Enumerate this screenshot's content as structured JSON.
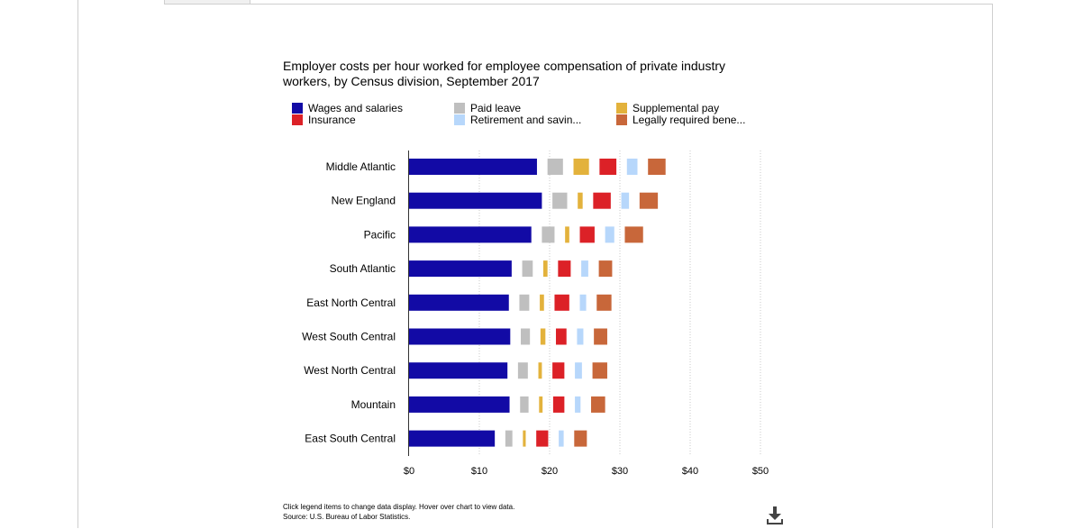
{
  "chart_data": {
    "type": "bar",
    "title": "Employer costs per hour worked for employee compensation of private industry workers, by Census division, September 2017",
    "categories": [
      "Middle Atlantic",
      "New England",
      "Pacific",
      "South Atlantic",
      "East North Central",
      "West South Central",
      "West North Central",
      "Mountain",
      "East South Central"
    ],
    "series": [
      {
        "name": "Wages and salaries",
        "color": "#120aa5",
        "values": [
          18.2,
          18.9,
          17.4,
          14.6,
          14.2,
          14.4,
          14.0,
          14.3,
          12.2
        ]
      },
      {
        "name": "Paid leave",
        "color": "#bfbfbf",
        "values": [
          2.2,
          2.1,
          1.8,
          1.5,
          1.4,
          1.3,
          1.4,
          1.2,
          1.0
        ]
      },
      {
        "name": "Supplemental pay",
        "color": "#e3b23c",
        "values": [
          2.2,
          0.7,
          0.6,
          0.6,
          0.6,
          0.7,
          0.5,
          0.5,
          0.4
        ]
      },
      {
        "name": "Insurance",
        "color": "#dc2127",
        "values": [
          2.4,
          2.5,
          2.1,
          1.8,
          2.1,
          1.5,
          1.7,
          1.6,
          1.7
        ]
      },
      {
        "name": "Retirement and savin...",
        "color": "#b7d7fb",
        "values": [
          1.5,
          1.1,
          1.3,
          1.0,
          0.9,
          0.9,
          1.0,
          0.8,
          0.7
        ]
      },
      {
        "name": "Legally required bene...",
        "color": "#c8673a",
        "values": [
          2.5,
          2.6,
          2.6,
          1.9,
          2.1,
          1.9,
          2.1,
          2.0,
          1.8
        ]
      }
    ],
    "segment_gap_units": 1.5,
    "xlim": [
      0,
      50
    ],
    "x_ticks": [
      "$0",
      "$10",
      "$20",
      "$30",
      "$40",
      "$50"
    ],
    "grid": "vertical dotted",
    "legend": "top, three columns"
  },
  "note": {
    "line1": "Click legend items to change data display. Hover over chart to view data.",
    "line2": "Source: U.S. Bureau of Labor Statistics."
  },
  "icons": {
    "download": "download-icon"
  }
}
